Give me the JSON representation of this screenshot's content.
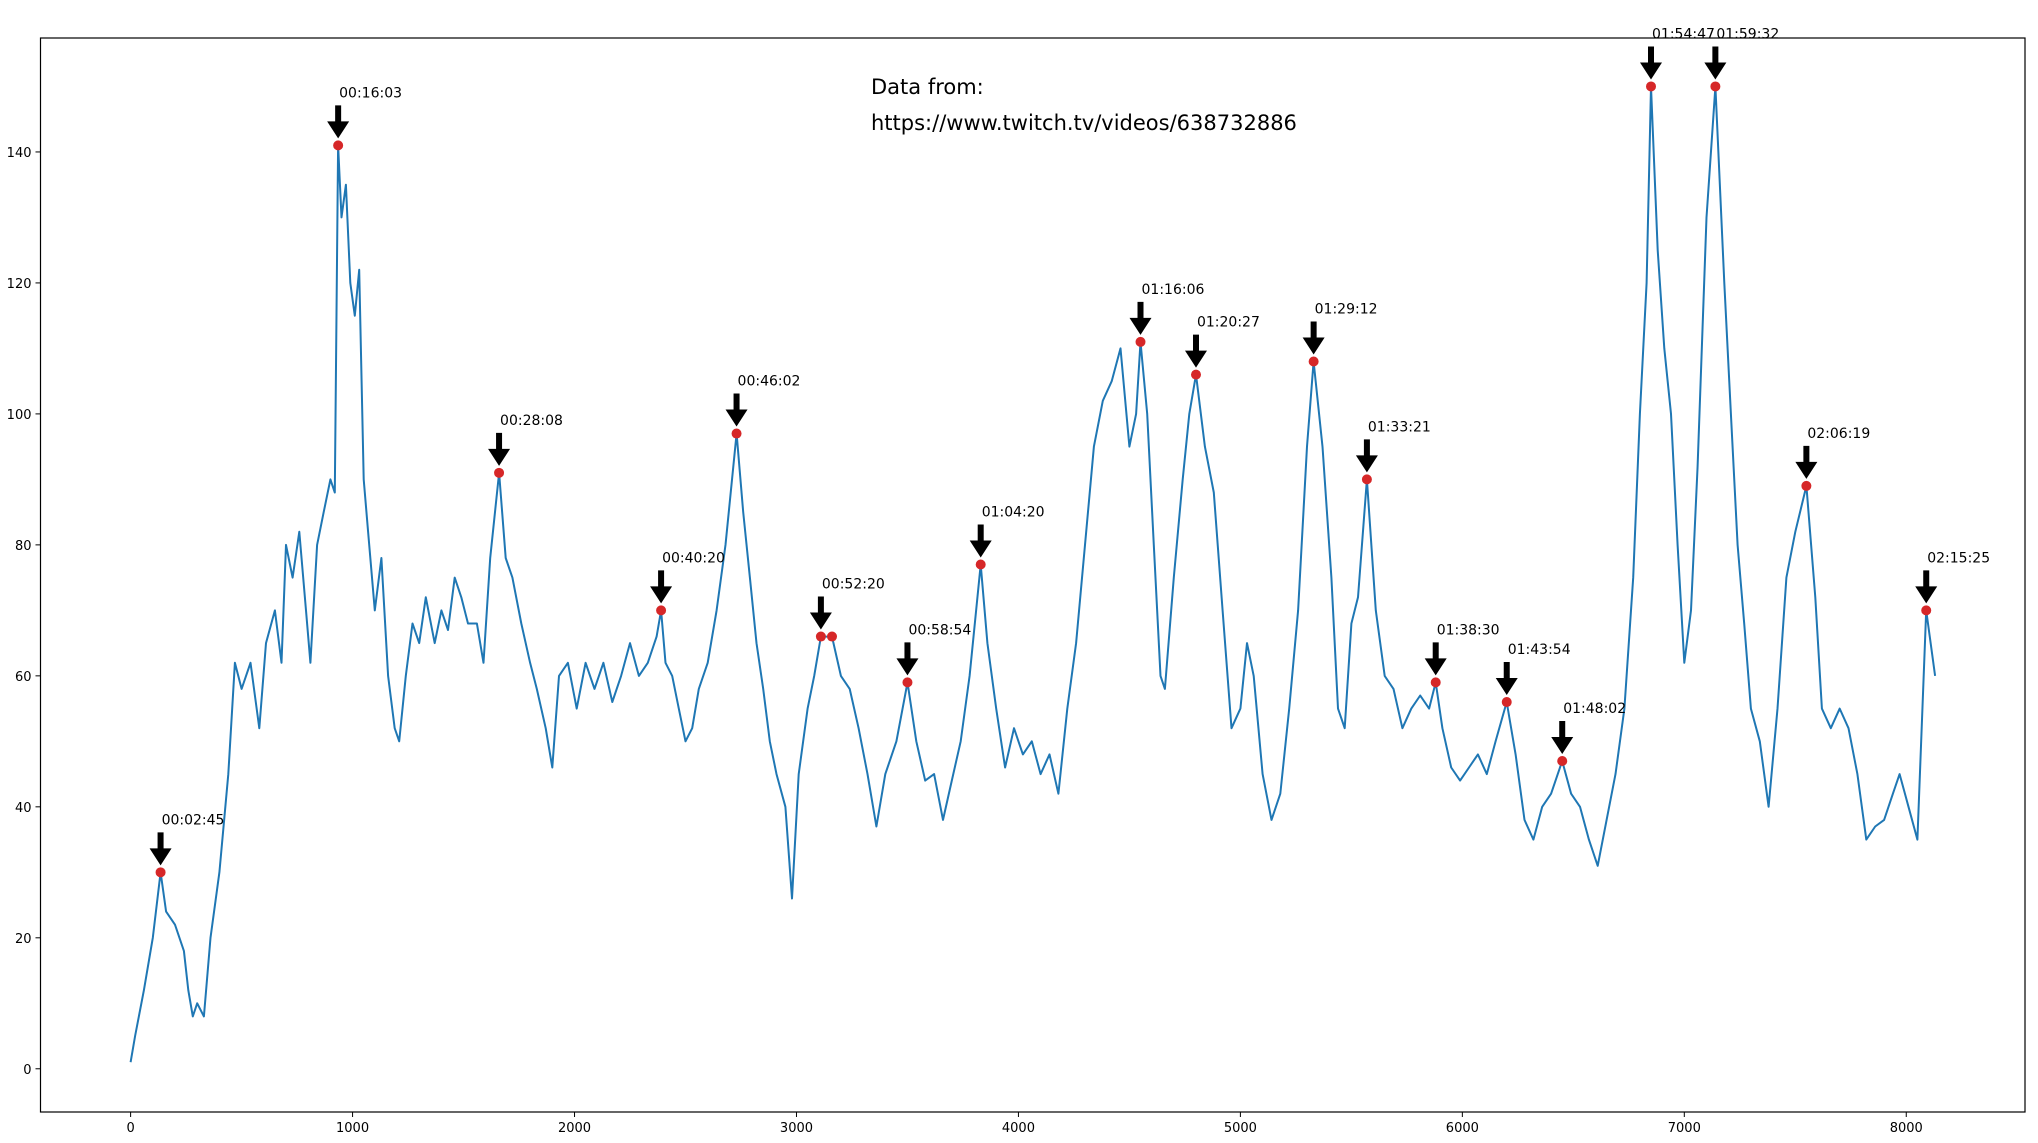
{
  "chart_data": {
    "type": "line",
    "note_lines": [
      "Data from:",
      "https://www.twitch.tv/videos/638732886"
    ],
    "xlim": [
      -406,
      8535
    ],
    "ylim": [
      -6.6,
      157.4
    ],
    "xticks": [
      0,
      1000,
      2000,
      3000,
      4000,
      5000,
      6000,
      7000,
      8000
    ],
    "yticks": [
      0,
      20,
      40,
      60,
      80,
      100,
      120,
      140
    ],
    "series": [
      {
        "color": "#1f77b4",
        "x": [
          0,
          20,
          60,
          100,
          135,
          160,
          200,
          240,
          260,
          280,
          300,
          330,
          360,
          400,
          440,
          470,
          500,
          540,
          580,
          610,
          650,
          680,
          700,
          730,
          760,
          790,
          810,
          840,
          870,
          900,
          920,
          935,
          950,
          970,
          990,
          1010,
          1030,
          1050,
          1070,
          1100,
          1130,
          1160,
          1190,
          1210,
          1240,
          1270,
          1300,
          1330,
          1370,
          1400,
          1430,
          1460,
          1490,
          1520,
          1560,
          1590,
          1620,
          1660,
          1690,
          1720,
          1760,
          1800,
          1830,
          1870,
          1900,
          1930,
          1970,
          2010,
          2050,
          2090,
          2130,
          2170,
          2210,
          2250,
          2290,
          2330,
          2370,
          2390,
          2410,
          2440,
          2470,
          2500,
          2530,
          2560,
          2600,
          2640,
          2680,
          2730,
          2760,
          2790,
          2820,
          2850,
          2880,
          2910,
          2950,
          2980,
          3010,
          3050,
          3080,
          3110,
          3160,
          3200,
          3240,
          3280,
          3320,
          3360,
          3400,
          3450,
          3500,
          3540,
          3580,
          3620,
          3660,
          3700,
          3740,
          3780,
          3830,
          3860,
          3900,
          3940,
          3980,
          4020,
          4060,
          4100,
          4140,
          4180,
          4220,
          4260,
          4300,
          4340,
          4380,
          4420,
          4460,
          4500,
          4530,
          4550,
          4580,
          4610,
          4640,
          4660,
          4700,
          4740,
          4770,
          4800,
          4840,
          4880,
          4920,
          4960,
          5000,
          5030,
          5060,
          5100,
          5140,
          5180,
          5220,
          5260,
          5300,
          5330,
          5370,
          5410,
          5440,
          5470,
          5500,
          5530,
          5570,
          5610,
          5650,
          5690,
          5730,
          5770,
          5810,
          5850,
          5880,
          5910,
          5950,
          5990,
          6030,
          6070,
          6110,
          6150,
          6200,
          6240,
          6280,
          6320,
          6360,
          6400,
          6450,
          6490,
          6530,
          6570,
          6610,
          6650,
          6690,
          6730,
          6770,
          6800,
          6830,
          6850,
          6880,
          6910,
          6940,
          6970,
          7000,
          7030,
          7060,
          7100,
          7140,
          7180,
          7210,
          7240,
          7270,
          7300,
          7340,
          7380,
          7420,
          7460,
          7500,
          7550,
          7590,
          7620,
          7660,
          7700,
          7740,
          7780,
          7820,
          7860,
          7900,
          7940,
          7970,
          8010,
          8050,
          8090,
          8130
        ],
        "values": [
          1,
          5,
          12,
          20,
          30,
          24,
          22,
          18,
          12,
          8,
          10,
          8,
          20,
          30,
          45,
          62,
          58,
          62,
          52,
          65,
          70,
          62,
          80,
          75,
          82,
          70,
          62,
          80,
          85,
          90,
          88,
          141,
          130,
          135,
          120,
          115,
          122,
          90,
          82,
          70,
          78,
          60,
          52,
          50,
          60,
          68,
          65,
          72,
          65,
          70,
          67,
          75,
          72,
          68,
          68,
          62,
          78,
          91,
          78,
          75,
          68,
          62,
          58,
          52,
          46,
          60,
          62,
          55,
          62,
          58,
          62,
          56,
          60,
          65,
          60,
          62,
          66,
          70,
          62,
          60,
          55,
          50,
          52,
          58,
          62,
          70,
          80,
          97,
          85,
          75,
          65,
          58,
          50,
          45,
          40,
          26,
          45,
          55,
          60,
          66,
          66,
          60,
          58,
          52,
          45,
          37,
          45,
          50,
          59,
          50,
          44,
          45,
          38,
          44,
          50,
          60,
          77,
          65,
          55,
          46,
          52,
          48,
          50,
          45,
          48,
          42,
          55,
          65,
          80,
          95,
          102,
          105,
          110,
          95,
          100,
          111,
          100,
          80,
          60,
          58,
          75,
          90,
          100,
          106,
          95,
          88,
          70,
          52,
          55,
          65,
          60,
          45,
          38,
          42,
          55,
          70,
          95,
          108,
          95,
          75,
          55,
          52,
          68,
          72,
          90,
          70,
          60,
          58,
          52,
          55,
          57,
          55,
          59,
          52,
          46,
          44,
          46,
          48,
          45,
          50,
          56,
          48,
          38,
          35,
          40,
          42,
          47,
          42,
          40,
          35,
          31,
          38,
          45,
          55,
          75,
          100,
          120,
          150,
          125,
          110,
          100,
          80,
          62,
          70,
          92,
          130,
          150,
          120,
          100,
          80,
          68,
          55,
          50,
          40,
          55,
          75,
          82,
          89,
          72,
          55,
          52,
          55,
          52,
          45,
          35,
          37,
          38,
          42,
          45,
          40,
          35,
          70,
          60
        ]
      }
    ],
    "markers": {
      "color": "#d62728",
      "x": [
        135,
        935,
        1660,
        2390,
        2730,
        3110,
        3160,
        3500,
        3830,
        4550,
        4800,
        5330,
        5570,
        5880,
        6200,
        6450,
        6850,
        7140,
        7550,
        8090
      ],
      "values": [
        30,
        141,
        91,
        70,
        97,
        66,
        66,
        59,
        77,
        111,
        106,
        108,
        90,
        59,
        56,
        47,
        150,
        150,
        89,
        70
      ]
    },
    "annotations": [
      {
        "text": "00:02:45",
        "x": 135,
        "y": 30
      },
      {
        "text": "00:16:03",
        "x": 935,
        "y": 141
      },
      {
        "text": "00:28:08",
        "x": 1660,
        "y": 91
      },
      {
        "text": "00:40:20",
        "x": 2390,
        "y": 70
      },
      {
        "text": "00:46:02",
        "x": 2730,
        "y": 97
      },
      {
        "text": "00:52:20",
        "x": 3110,
        "y": 66
      },
      {
        "text": "00:58:54",
        "x": 3500,
        "y": 59
      },
      {
        "text": "01:04:20",
        "x": 3830,
        "y": 77
      },
      {
        "text": "01:16:06",
        "x": 4550,
        "y": 111
      },
      {
        "text": "01:20:27",
        "x": 4800,
        "y": 106
      },
      {
        "text": "01:29:12",
        "x": 5330,
        "y": 108
      },
      {
        "text": "01:33:21",
        "x": 5570,
        "y": 90
      },
      {
        "text": "01:38:30",
        "x": 5880,
        "y": 59
      },
      {
        "text": "01:43:54",
        "x": 6200,
        "y": 56
      },
      {
        "text": "01:48:02",
        "x": 6450,
        "y": 47
      },
      {
        "text": "01:54:47",
        "x": 6850,
        "y": 150
      },
      {
        "text": "01:59:32",
        "x": 7140,
        "y": 150
      },
      {
        "text": "02:06:19",
        "x": 7550,
        "y": 89
      },
      {
        "text": "02:15:25",
        "x": 8090,
        "y": 70
      }
    ]
  }
}
